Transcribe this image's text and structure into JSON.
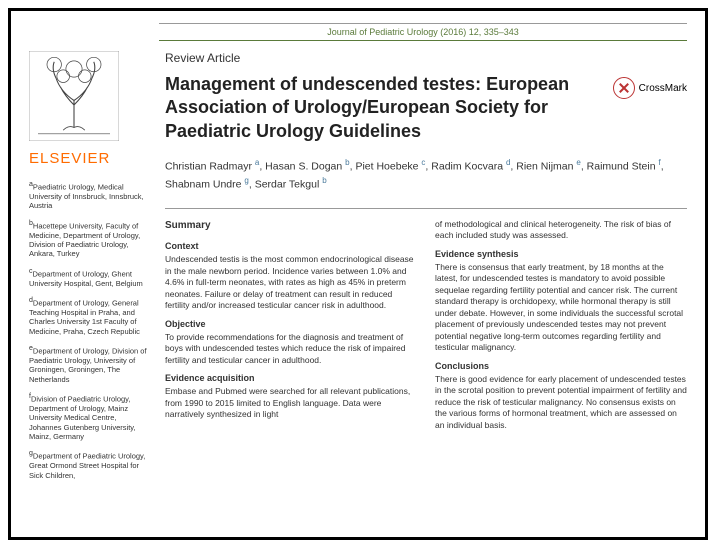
{
  "journal_line": "Journal of Pediatric Urology (2016) 12, 335–343",
  "publisher": "ELSEVIER",
  "article_type": "Review Article",
  "title": "Management of undescended testes: European Association of Urology/European Society for Paediatric Urology Guidelines",
  "crossmark": "CrossMark",
  "authors_html": "Christian Radmayr ᵃ, Hasan S. Dogan ᵇ, Piet Hoebeke ᶜ, Radim Kocvara ᵈ, Rien Nijman ᵉ, Raimund Stein ᶠ, Shabnam Undre ᵍ, Serdar Tekgul ᵇ",
  "authors": [
    {
      "name": "Christian Radmayr",
      "aff": "a"
    },
    {
      "name": "Hasan S. Dogan",
      "aff": "b"
    },
    {
      "name": "Piet Hoebeke",
      "aff": "c"
    },
    {
      "name": "Radim Kocvara",
      "aff": "d"
    },
    {
      "name": "Rien Nijman",
      "aff": "e"
    },
    {
      "name": "Raimund Stein",
      "aff": "f"
    },
    {
      "name": "Shabnam Undre",
      "aff": "g"
    },
    {
      "name": "Serdar Tekgul",
      "aff": "b"
    }
  ],
  "affiliations": [
    {
      "key": "a",
      "text": "Paediatric Urology, Medical University of Innsbruck, Innsbruck, Austria"
    },
    {
      "key": "b",
      "text": "Hacettepe University, Faculty of Medicine, Department of Urology, Division of Paediatric Urology, Ankara, Turkey"
    },
    {
      "key": "c",
      "text": "Department of Urology, Ghent University Hospital, Gent, Belgium"
    },
    {
      "key": "d",
      "text": "Department of Urology, General Teaching Hospital in Praha, and Charles University 1st Faculty of Medicine, Praha, Czech Republic"
    },
    {
      "key": "e",
      "text": "Department of Urology, Division of Paediatric Urology, University of Groningen, Groningen, The Netherlands"
    },
    {
      "key": "f",
      "text": "Division of Paediatric Urology, Department of Urology, Mainz University Medical Centre, Johannes Gutenberg University, Mainz, Germany"
    },
    {
      "key": "g",
      "text": "Department of Paediatric Urology, Great Ormond Street Hospital for Sick Children,"
    }
  ],
  "summary_label": "Summary",
  "sections": {
    "context": {
      "h": "Context",
      "p": "Undescended testis is the most common endocrinological disease in the male newborn period. Incidence varies between 1.0% and 4.6% in full-term neonates, with rates as high as 45% in preterm neonates. Failure or delay of treatment can result in reduced fertility and/or increased testicular cancer risk in adulthood."
    },
    "objective": {
      "h": "Objective",
      "p": "To provide recommendations for the diagnosis and treatment of boys with undescended testes which reduce the risk of impaired fertility and testicular cancer in adulthood."
    },
    "evidence_acq": {
      "h": "Evidence acquisition",
      "p": "Embase and Pubmed were searched for all relevant publications, from 1990 to 2015 limited to English language. Data were narratively synthesized in light"
    },
    "col2_lead": "of methodological and clinical heterogeneity. The risk of bias of each included study was assessed.",
    "evidence_syn": {
      "h": "Evidence synthesis",
      "p": "There is consensus that early treatment, by 18 months at the latest, for undescended testes is mandatory to avoid possible sequelae regarding fertility potential and cancer risk. The current standard therapy is orchidopexy, while hormonal therapy is still under debate. However, in some individuals the successful scrotal placement of previously undescended testes may not prevent potential negative long-term outcomes regarding fertility and testicular malignancy."
    },
    "conclusions": {
      "h": "Conclusions",
      "p": "There is good evidence for early placement of undescended testes in the scrotal position to prevent potential impairment of fertility and reduce the risk of testicular malignancy. No consensus exists on the various forms of hormonal treatment, which are assessed on an individual basis."
    }
  },
  "colors": {
    "accent": "#5a7a3a",
    "orange": "#ff6b00",
    "sup": "#4a7a9c"
  }
}
